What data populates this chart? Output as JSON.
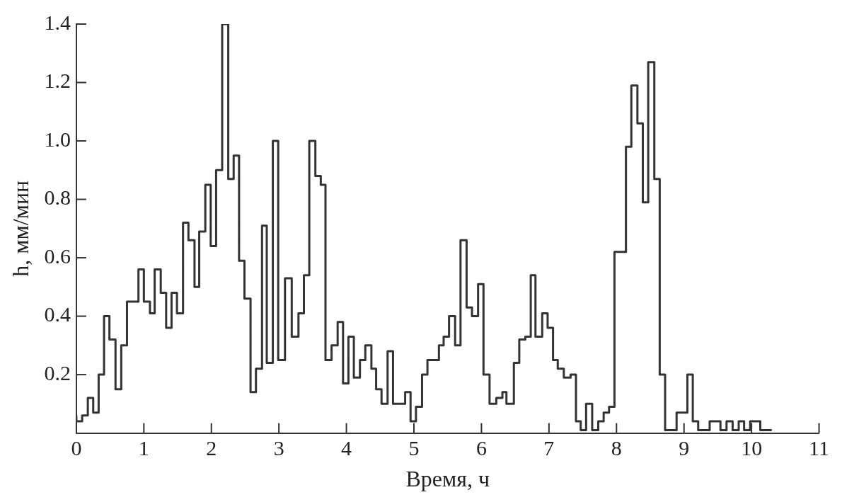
{
  "chart_data": {
    "type": "step",
    "xlabel": "Время, ч",
    "ylabel": "h, мм/мин",
    "xlim": [
      0,
      11
    ],
    "ylim": [
      0,
      1.4
    ],
    "xticks": [
      0,
      1,
      2,
      3,
      4,
      5,
      6,
      7,
      8,
      9,
      10,
      11
    ],
    "yticks": [
      0.2,
      0.4,
      0.6,
      0.8,
      {
        "value": 1,
        "label": "1.0"
      },
      1.2,
      1.4
    ],
    "grid": false,
    "legend": false,
    "marker": "none",
    "line_style": "solid",
    "series": [
      {
        "color": "#333333",
        "x": [
          0,
          0.086,
          0.17,
          0.25,
          0.33,
          0.41,
          0.49,
          0.58,
          0.665,
          0.75,
          0.92,
          1.0,
          1.09,
          1.16,
          1.25,
          1.33,
          1.41,
          1.49,
          1.58,
          1.66,
          1.75,
          1.82,
          1.91,
          1.99,
          2.07,
          2.16,
          2.25,
          2.33,
          2.41,
          2.49,
          2.58,
          2.66,
          2.75,
          2.82,
          2.91,
          2.99,
          3.09,
          3.19,
          3.29,
          3.37,
          3.45,
          3.54,
          3.62,
          3.69,
          3.78,
          3.87,
          3.95,
          4.03,
          4.11,
          4.2,
          4.28,
          4.37,
          4.44,
          4.52,
          4.61,
          4.69,
          4.87,
          4.95,
          5.03,
          5.12,
          5.2,
          5.37,
          5.44,
          5.52,
          5.61,
          5.69,
          5.78,
          5.86,
          5.95,
          6.03,
          6.12,
          6.22,
          6.31,
          6.37,
          6.48,
          6.56,
          6.65,
          6.73,
          6.8,
          6.9,
          6.98,
          7.06,
          7.13,
          7.22,
          7.32,
          7.4,
          7.47,
          7.55,
          7.64,
          7.73,
          7.81,
          7.89,
          7.97,
          8.14,
          8.22,
          8.31,
          8.39,
          8.47,
          8.56,
          8.64,
          8.72,
          8.89,
          9.05,
          9.13,
          9.21,
          9.38,
          9.54,
          9.63,
          9.72,
          9.81,
          9.89,
          9.98,
          10.13,
          10.22,
          10.3
        ],
        "values": [
          0.06,
          0.04,
          0.06,
          0.12,
          0.07,
          0.2,
          0.4,
          0.32,
          0.15,
          0.3,
          0.45,
          0.56,
          0.45,
          0.41,
          0.56,
          0.48,
          0.36,
          0.48,
          0.41,
          0.72,
          0.66,
          0.5,
          0.69,
          0.85,
          0.64,
          0.9,
          1.4,
          0.87,
          0.95,
          0.59,
          0.46,
          0.14,
          0.22,
          0.71,
          0.24,
          1.0,
          0.25,
          0.53,
          0.33,
          0.41,
          0.54,
          1.0,
          0.88,
          0.85,
          0.25,
          0.3,
          0.38,
          0.17,
          0.33,
          0.19,
          0.25,
          0.3,
          0.22,
          0.15,
          0.1,
          0.28,
          0.1,
          0.14,
          0.04,
          0.09,
          0.2,
          0.25,
          0.3,
          0.33,
          0.4,
          0.3,
          0.66,
          0.43,
          0.4,
          0.51,
          0.2,
          0.1,
          0.12,
          0.14,
          0.1,
          0.24,
          0.32,
          0.33,
          0.54,
          0.33,
          0.41,
          0.36,
          0.25,
          0.22,
          0.19,
          0.2,
          0.04,
          0.01,
          0.1,
          0.01,
          0.04,
          0.07,
          0.09,
          0.62,
          0.98,
          1.19,
          1.06,
          0.79,
          1.27,
          0.87,
          0.2,
          0.01,
          0.07,
          0.2,
          0.04,
          0.01,
          0.04,
          0.01,
          0.04,
          0.01,
          0.04,
          0.01,
          0.04,
          0.01,
          0.01
        ]
      }
    ]
  }
}
